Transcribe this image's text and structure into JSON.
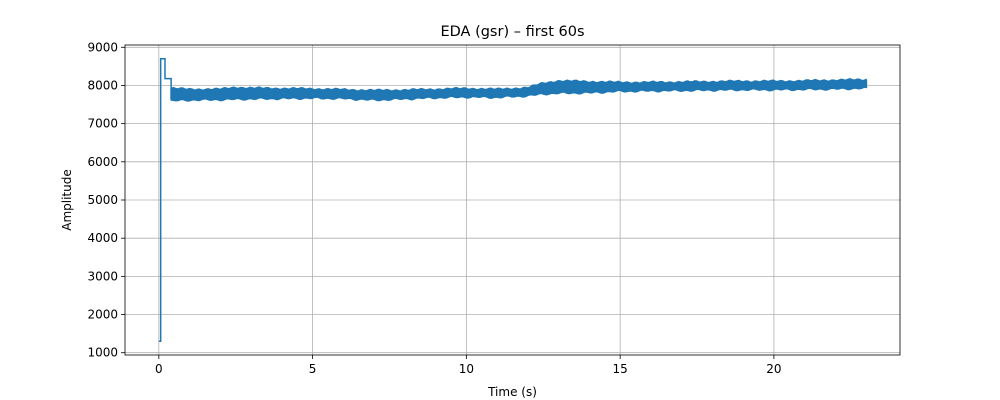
{
  "chart_data": {
    "type": "line",
    "title": "EDA (gsr) – first 60s",
    "xlabel": "Time (s)",
    "ylabel": "Amplitude",
    "xlim": [
      -1.1,
      24.1
    ],
    "ylim": [
      940,
      9060
    ],
    "xticks": [
      0,
      5,
      10,
      15,
      20
    ],
    "yticks": [
      1000,
      2000,
      3000,
      4000,
      5000,
      6000,
      7000,
      8000,
      9000
    ],
    "grid": true,
    "series": [
      {
        "color": "#1f77b4",
        "step_points": [
          [
            0,
            1300
          ],
          [
            0.06,
            1300
          ],
          [
            0.06,
            8700
          ],
          [
            0.2,
            8700
          ],
          [
            0.2,
            8180
          ],
          [
            0.4,
            8180
          ],
          [
            0.4,
            7640
          ]
        ],
        "band": {
          "x": [
            0.4,
            1,
            2,
            2.5,
            3,
            4,
            5,
            6,
            7,
            8,
            9,
            10,
            11,
            12,
            12.5,
            13,
            14,
            15,
            16,
            17,
            18,
            19,
            20,
            21,
            22,
            23
          ],
          "lower": [
            7600,
            7620,
            7630,
            7640,
            7650,
            7660,
            7670,
            7660,
            7620,
            7650,
            7680,
            7700,
            7690,
            7730,
            7780,
            7800,
            7810,
            7850,
            7860,
            7870,
            7880,
            7890,
            7890,
            7900,
            7910,
            7930
          ],
          "upper": [
            7920,
            7900,
            7900,
            7950,
            7930,
            7920,
            7910,
            7890,
            7870,
            7880,
            7900,
            7920,
            7900,
            7940,
            8060,
            8120,
            8100,
            8080,
            8080,
            8090,
            8100,
            8110,
            8110,
            8120,
            8140,
            8150
          ]
        }
      }
    ]
  }
}
